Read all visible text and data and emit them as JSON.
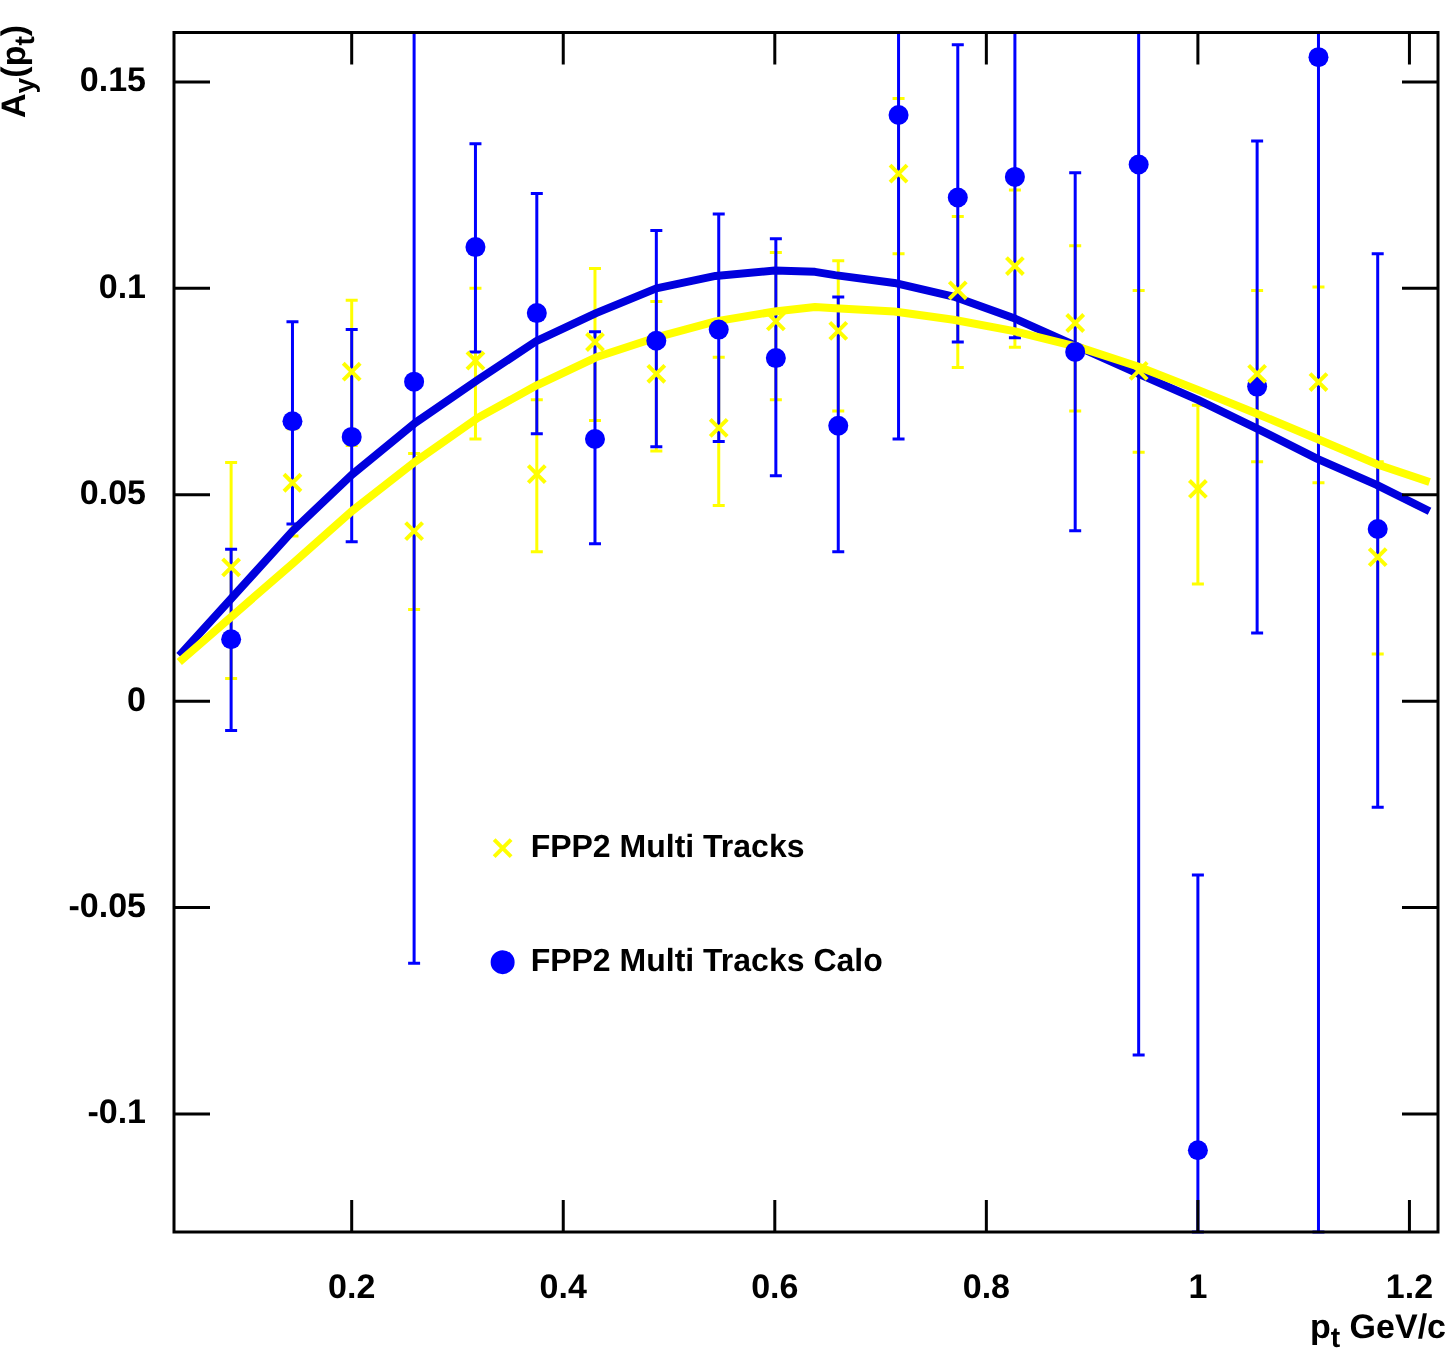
{
  "chart_data": {
    "type": "scatter",
    "xlabel": "p$_{t}$ GeV/c",
    "ylabel": "A$_{y}$(p$_{t}$)",
    "xlim": [
      0.032,
      1.227
    ],
    "xticks": [
      0.2,
      0.4,
      0.6,
      0.8,
      1,
      1.2
    ],
    "ylim": [
      -0.1286,
      0.162
    ],
    "yticks": [
      -0.1,
      -0.05,
      0,
      0.05,
      0.1,
      0.15
    ],
    "grid": false,
    "legend": "bottom left",
    "x": [
      0.086,
      0.144,
      0.2,
      0.259,
      0.317,
      0.375,
      0.43,
      0.488,
      0.547,
      0.601,
      0.66,
      0.717,
      0.773,
      0.827,
      0.884,
      0.944,
      1.0,
      1.056,
      1.114,
      1.17
    ],
    "series": [
      {
        "name": "FPP2 Multi Tracks",
        "color": "#ffff00",
        "marker": "cross",
        "values": [
          0.0324,
          0.0529,
          0.0798,
          0.0412,
          0.0825,
          0.055,
          0.087,
          0.0793,
          0.0662,
          0.092,
          0.0897,
          0.1278,
          0.0995,
          0.1054,
          0.0916,
          0.08,
          0.0514,
          0.0793,
          0.0773,
          0.0349
        ],
        "errors": [
          [
            0.0055,
            0.0578
          ],
          [
            0.04,
            0.066
          ],
          [
            0.0619,
            0.0971
          ],
          [
            0.0222,
            0.06
          ],
          [
            0.0635,
            0.1
          ],
          [
            0.0362,
            0.073
          ],
          [
            0.068,
            0.1048
          ],
          [
            0.0606,
            0.0968
          ],
          [
            0.0474,
            0.0833
          ],
          [
            0.073,
            0.1087
          ],
          [
            0.0703,
            0.1067
          ],
          [
            0.1084,
            0.146
          ],
          [
            0.0808,
            0.1174
          ],
          [
            0.0857,
            0.1238
          ],
          [
            0.0703,
            0.1103
          ],
          [
            0.0603,
            0.0995
          ],
          [
            0.0284,
            0.0717
          ],
          [
            0.058,
            0.0995
          ],
          [
            0.0529,
            0.1003
          ],
          [
            0.0114,
            0.058
          ]
        ]
      },
      {
        "name": "FPP2 Multi Tracks Calo",
        "color": "#0000ff",
        "marker": "circle",
        "values": [
          0.015,
          0.0678,
          0.064,
          0.0774,
          0.11,
          0.094,
          0.0635,
          0.0873,
          0.09,
          0.0831,
          0.0667,
          0.142,
          0.122,
          0.127,
          0.0846,
          0.13,
          -0.1088,
          0.0762,
          0.156,
          0.0417
        ],
        "errors": [
          [
            -0.0071,
            0.0368
          ],
          [
            0.0429,
            0.0919
          ],
          [
            0.0386,
            0.09
          ],
          [
            -0.0635,
            0.162
          ],
          [
            0.0846,
            0.135
          ],
          [
            0.0648,
            0.123
          ],
          [
            0.0381,
            0.0895
          ],
          [
            0.0616,
            0.114
          ],
          [
            0.0629,
            0.118
          ],
          [
            0.0546,
            0.112
          ],
          [
            0.0362,
            0.0979
          ],
          [
            0.0635,
            0.162
          ],
          [
            0.087,
            0.159
          ],
          [
            0.088,
            0.162
          ],
          [
            0.0413,
            0.128
          ],
          [
            -0.0857,
            0.162
          ],
          [
            -0.1286,
            -0.0421
          ],
          [
            0.0165,
            0.1357
          ],
          [
            -0.1286,
            0.162
          ],
          [
            -0.0257,
            0.1084
          ]
        ]
      },
      {
        "type": "line",
        "color": "#ffff00",
        "marker": "none",
        "x": [
          0.037,
          0.144,
          0.2,
          0.26,
          0.319,
          0.375,
          0.431,
          0.488,
          0.544,
          0.6,
          0.638,
          0.657,
          0.713,
          0.769,
          0.825,
          0.888,
          0.944,
          1.0,
          1.057,
          1.113,
          1.169,
          1.219
        ],
        "values": [
          0.0095,
          0.0333,
          0.046,
          0.058,
          0.0686,
          0.0765,
          0.0833,
          0.0881,
          0.092,
          0.0944,
          0.0955,
          0.0952,
          0.0944,
          0.0924,
          0.0897,
          0.0857,
          0.081,
          0.0754,
          0.0695,
          0.0635,
          0.0574,
          0.0531
        ]
      },
      {
        "type": "line",
        "color": "#0000dd",
        "marker": "none",
        "x": [
          0.037,
          0.144,
          0.2,
          0.26,
          0.319,
          0.375,
          0.431,
          0.488,
          0.544,
          0.6,
          0.638,
          0.657,
          0.713,
          0.769,
          0.825,
          0.888,
          0.944,
          1.0,
          1.057,
          1.113,
          1.169,
          1.219
        ],
        "values": [
          0.011,
          0.0412,
          0.0548,
          0.0674,
          0.0778,
          0.0873,
          0.094,
          0.1,
          0.103,
          0.1043,
          0.104,
          0.1032,
          0.1013,
          0.098,
          0.0929,
          0.0857,
          0.0793,
          0.073,
          0.0659,
          0.0587,
          0.0524,
          0.046
        ]
      }
    ]
  }
}
